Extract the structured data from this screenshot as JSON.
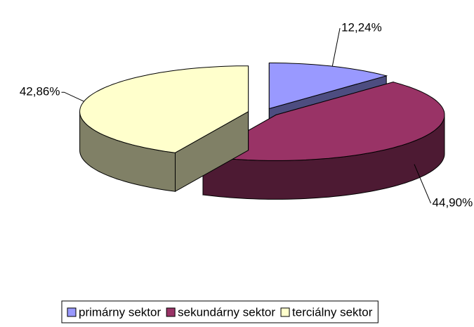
{
  "chart_data": {
    "type": "pie",
    "categories": [
      "primárny sektor",
      "sekundárny sektor",
      "terciálny sektor"
    ],
    "values": [
      12.24,
      44.9,
      42.86
    ],
    "value_labels": [
      "12,24%",
      "44,90%",
      "42,86%"
    ],
    "colors": [
      "#9999ff",
      "#993366",
      "#ffffcc"
    ],
    "legend": "bottom"
  }
}
